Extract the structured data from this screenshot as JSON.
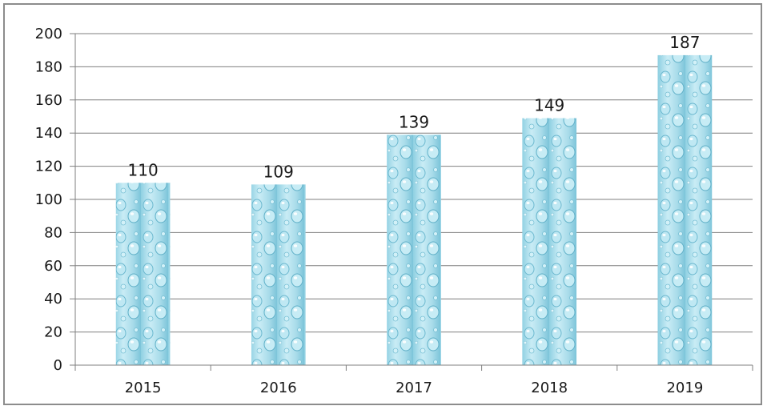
{
  "chart_data": {
    "type": "bar",
    "categories": [
      "2015",
      "2016",
      "2017",
      "2018",
      "2019"
    ],
    "values": [
      110,
      109,
      139,
      149,
      187
    ],
    "data_labels": [
      "110",
      "109",
      "139",
      "149",
      "187"
    ],
    "y_ticks": [
      "0",
      "20",
      "40",
      "60",
      "80",
      "100",
      "120",
      "140",
      "160",
      "180",
      "200"
    ],
    "title": "",
    "xlabel": "",
    "ylabel": "",
    "ylim": [
      0,
      200
    ],
    "grid": true,
    "legend": "none",
    "colors": {
      "bar_light": "#d7f1f8",
      "bar_mid": "#a9dcea",
      "bar_dark": "#5fb6cf",
      "gridline": "#7f7f7f",
      "axis": "#7f7f7f",
      "border": "#8c8c8c"
    }
  }
}
